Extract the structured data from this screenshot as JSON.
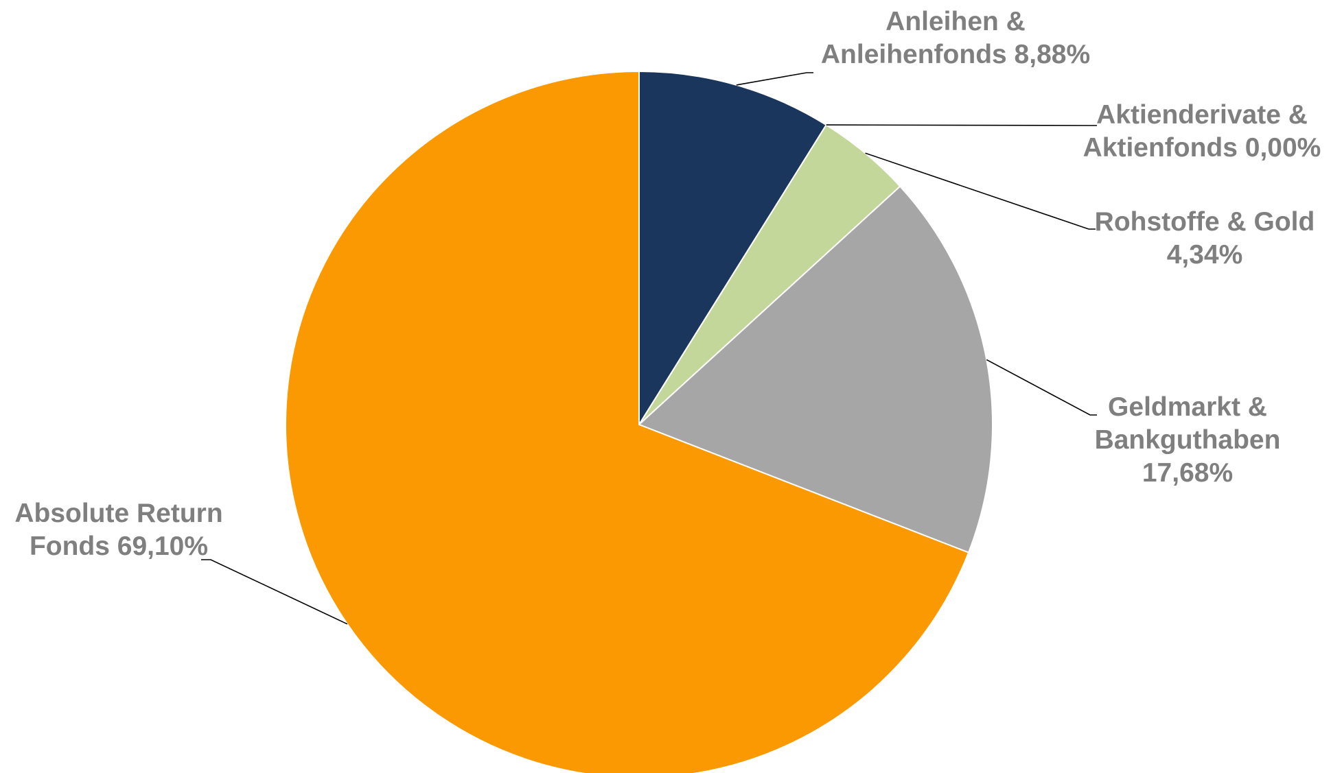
{
  "chart_data": {
    "type": "pie",
    "slices": [
      {
        "lines": [
          "Anleihen &",
          "Anleihenfonds 8,88%"
        ],
        "value": 8.88,
        "color": "#1a365d"
      },
      {
        "lines": [
          "Aktienderivate &",
          "Aktienfonds 0,00%"
        ],
        "value": 0.0,
        "color": "#c4d79b"
      },
      {
        "lines": [
          "Rohstoffe & Gold",
          "4,34%"
        ],
        "value": 4.34,
        "color": "#c4d79b"
      },
      {
        "lines": [
          "Geldmarkt &",
          "Bankguthaben",
          "17,68%"
        ],
        "value": 17.68,
        "color": "#a6a6a6"
      },
      {
        "lines": [
          "Absolute Return",
          "Fonds 69,10%"
        ],
        "value": 69.1,
        "color": "#fb9902"
      }
    ]
  }
}
